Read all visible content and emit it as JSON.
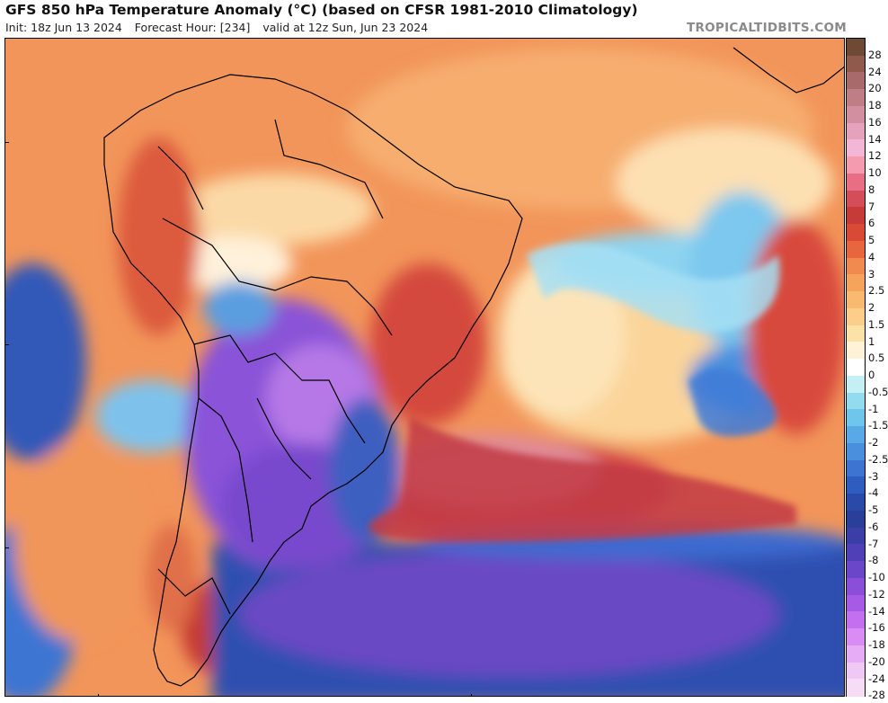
{
  "header": {
    "title": "GFS 850 hPa Temperature Anomaly (°C) (based on CFSR 1981-2010 Climatology)",
    "init": "Init: 18z Jun 13 2024",
    "forecast_hour": "Forecast Hour: [234]",
    "valid": "valid at 12z Sun, Jun 23 2024",
    "watermark": "TROPICALTIDBITS.COM"
  },
  "colorbar": {
    "labels": [
      "28",
      "24",
      "20",
      "18",
      "16",
      "14",
      "12",
      "10",
      "8",
      "7",
      "6",
      "5",
      "4",
      "3",
      "2.5",
      "2",
      "1.5",
      "1",
      "0.5",
      "0",
      "-0.5",
      "-1",
      "-1.5",
      "-2",
      "-2.5",
      "-3",
      "-4",
      "-5",
      "-6",
      "-7",
      "-8",
      "-10",
      "-12",
      "-14",
      "-16",
      "-18",
      "-20",
      "-24",
      "-28"
    ],
    "colors": [
      "#6e4a34",
      "#8f5a4c",
      "#a86a6a",
      "#bf7d86",
      "#d28fa0",
      "#e4a2bc",
      "#f2b6d6",
      "#f59bb0",
      "#e86e86",
      "#d44e5a",
      "#c63a3a",
      "#d84a36",
      "#e8663e",
      "#f08a4e",
      "#f6a45c",
      "#f8b970",
      "#fbce8a",
      "#fde2a8",
      "#fff2d6",
      "#ffffff",
      "#c4f0f4",
      "#93dcf0",
      "#6fc6ec",
      "#58a9e6",
      "#4a8fde",
      "#3d74d2",
      "#2f5cbf",
      "#2a4aa8",
      "#2a3f98",
      "#3a3fa8",
      "#5040b8",
      "#6a46c8",
      "#8a4ed8",
      "#a65ae6",
      "#c46ef0",
      "#d88cf4",
      "#e6acf6",
      "#f0c8f6",
      "#f6dcf4"
    ]
  }
}
